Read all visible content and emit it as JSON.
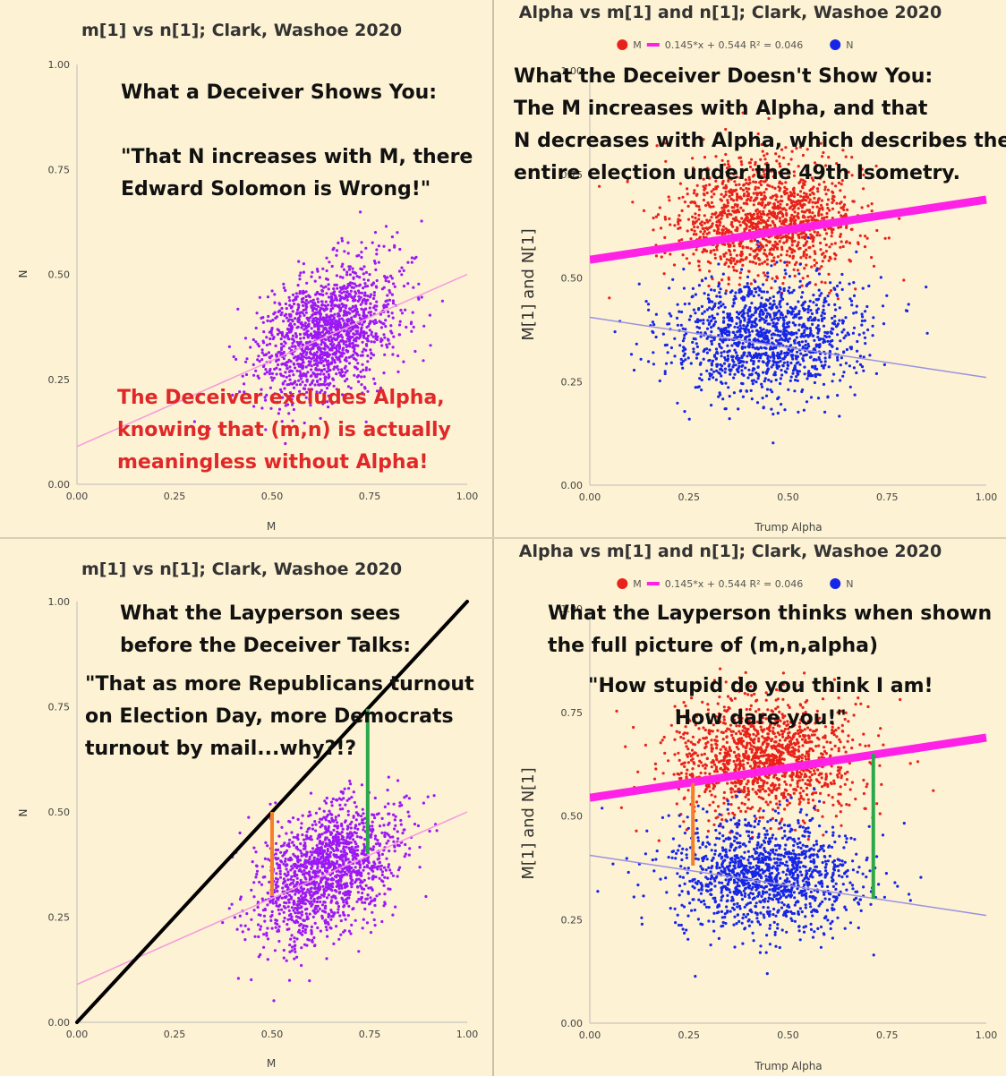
{
  "chart_data": [
    {
      "id": "tl",
      "type": "scatter",
      "title": "m[1] vs n[1]; Clark, Washoe 2020",
      "xlabel": "M",
      "ylabel": "N",
      "xlim": [
        0,
        1
      ],
      "ylim": [
        0,
        1
      ],
      "xticks": [
        "0.00",
        "0.25",
        "0.50",
        "0.75",
        "1.00"
      ],
      "yticks": [
        "0.00",
        "0.25",
        "0.50",
        "0.75",
        "1.00"
      ],
      "grid": false,
      "series": [
        {
          "color": "#9b19f5",
          "cloud": {
            "center": [
              0.64,
              0.36
            ],
            "spread": [
              0.09,
              0.075
            ],
            "count": 1500
          },
          "trend": {
            "slope": 0.41,
            "intercept": 0.09,
            "color": "#f59adf",
            "width": 1.5
          }
        }
      ],
      "annotations": [
        {
          "color": "#111111",
          "lines": [
            "What a Deceiver Shows You:",
            "",
            "\"That N increases with M, there",
            "Edward Solomon is Wrong!\""
          ]
        },
        {
          "color": "#e02828",
          "lines": [
            "The Deceiver excludes Alpha,",
            "knowing that (m,n) is actually",
            "meaningless without Alpha!"
          ]
        }
      ]
    },
    {
      "id": "tr",
      "type": "scatter",
      "title": "Alpha vs m[1] and n[1]; Clark, Washoe 2020",
      "xlabel": "Trump Alpha",
      "ylabel": "M[1]  and  N[1]",
      "xlim": [
        0,
        1
      ],
      "ylim": [
        0,
        1
      ],
      "xticks": [
        "0.00",
        "0.25",
        "0.50",
        "0.75",
        "1.00"
      ],
      "yticks": [
        "0.00",
        "0.25",
        "0.50",
        "0.75",
        "1.00"
      ],
      "legend": {
        "position": "top",
        "items": [
          {
            "label": "M",
            "color": "#e8221a",
            "marker": "dot"
          },
          {
            "label": "0.145*x + 0.544 R² = 0.046",
            "color": "#ff22e6",
            "marker": "line"
          },
          {
            "label": "N",
            "color": "#1626e8",
            "marker": "dot"
          }
        ]
      },
      "series": [
        {
          "name": "M",
          "color": "#e8221a",
          "cloud": {
            "center": [
              0.44,
              0.64
            ],
            "spread": [
              0.12,
              0.07
            ],
            "count": 1300
          },
          "trend": {
            "slope": 0.145,
            "intercept": 0.544,
            "color": "#ff22e6",
            "width": 9
          }
        },
        {
          "name": "N",
          "color": "#1626e8",
          "cloud": {
            "center": [
              0.44,
              0.36
            ],
            "spread": [
              0.12,
              0.07
            ],
            "count": 1300
          },
          "trend": {
            "slope": -0.145,
            "intercept": 0.405,
            "color": "#9a92e0",
            "width": 1.5
          }
        }
      ],
      "annotations": [
        {
          "color": "#111111",
          "lines": [
            "What the Deceiver Doesn't Show You:",
            "The M increases with Alpha, and that",
            "N decreases with Alpha, which describes the",
            "entire election under the 49th Isometry."
          ]
        }
      ]
    },
    {
      "id": "bl",
      "type": "scatter",
      "title": "m[1] vs n[1]; Clark, Washoe 2020",
      "xlabel": "M",
      "ylabel": "N",
      "xlim": [
        0,
        1
      ],
      "ylim": [
        0,
        1
      ],
      "xticks": [
        "0.00",
        "0.25",
        "0.50",
        "0.75",
        "1.00"
      ],
      "yticks": [
        "0.00",
        "0.25",
        "0.50",
        "0.75",
        "1.00"
      ],
      "series": [
        {
          "color": "#9b19f5",
          "cloud": {
            "center": [
              0.64,
              0.36
            ],
            "spread": [
              0.09,
              0.075
            ],
            "count": 1500
          },
          "trend": {
            "slope": 0.41,
            "intercept": 0.09,
            "color": "#f59adf",
            "width": 1.5
          }
        }
      ],
      "reference_line": {
        "from": [
          0,
          0
        ],
        "to": [
          1,
          1
        ],
        "color": "#000000"
      },
      "segments": [
        {
          "color": "#f57f2a",
          "from": [
            0.5,
            0.5
          ],
          "to": [
            0.5,
            0.3
          ]
        },
        {
          "color": "#2aa84a",
          "from": [
            0.745,
            0.745
          ],
          "to": [
            0.745,
            0.4
          ]
        }
      ],
      "annotations": [
        {
          "color": "#111111",
          "lines": [
            "What the Layperson sees",
            "before the Deceiver Talks:"
          ]
        },
        {
          "color": "#111111",
          "lines": [
            "\"That as more Republicans turnout",
            "on Election Day, more Democrats",
            "turnout by mail...why?!?"
          ]
        }
      ]
    },
    {
      "id": "br",
      "type": "scatter",
      "title": "Alpha vs m[1] and n[1]; Clark, Washoe 2020",
      "xlabel": "Trump Alpha",
      "ylabel": "M[1]  and  N[1]",
      "xlim": [
        0,
        1
      ],
      "ylim": [
        0,
        1
      ],
      "xticks": [
        "0.00",
        "0.25",
        "0.50",
        "0.75",
        "1.00"
      ],
      "yticks": [
        "0.00",
        "0.25",
        "0.50",
        "0.75",
        "1.00"
      ],
      "legend": {
        "position": "top",
        "items": [
          {
            "label": "M",
            "color": "#e8221a",
            "marker": "dot"
          },
          {
            "label": "0.145*x + 0.544 R² = 0.046",
            "color": "#ff22e6",
            "marker": "line"
          },
          {
            "label": "N",
            "color": "#1626e8",
            "marker": "dot"
          }
        ]
      },
      "series": [
        {
          "name": "M",
          "color": "#e8221a",
          "cloud": {
            "center": [
              0.44,
              0.64
            ],
            "spread": [
              0.12,
              0.07
            ],
            "count": 1300
          },
          "trend": {
            "slope": 0.145,
            "intercept": 0.544,
            "color": "#ff22e6",
            "width": 9
          }
        },
        {
          "name": "N",
          "color": "#1626e8",
          "cloud": {
            "center": [
              0.44,
              0.36
            ],
            "spread": [
              0.12,
              0.07
            ],
            "count": 1300
          },
          "trend": {
            "slope": -0.145,
            "intercept": 0.405,
            "color": "#9a92e0",
            "width": 1.5
          }
        }
      ],
      "segments": [
        {
          "color": "#f57f2a",
          "from": [
            0.26,
            0.58
          ],
          "to": [
            0.26,
            0.38
          ]
        },
        {
          "color": "#2aa84a",
          "from": [
            0.715,
            0.65
          ],
          "to": [
            0.715,
            0.3
          ]
        }
      ],
      "annotations": [
        {
          "color": "#111111",
          "lines": [
            "What the Layperson thinks when shown",
            "the full picture of (m,n,alpha)"
          ]
        },
        {
          "color": "#111111",
          "lines": [
            "\"How stupid do you think I am!",
            "How dare you!\""
          ]
        }
      ]
    }
  ]
}
